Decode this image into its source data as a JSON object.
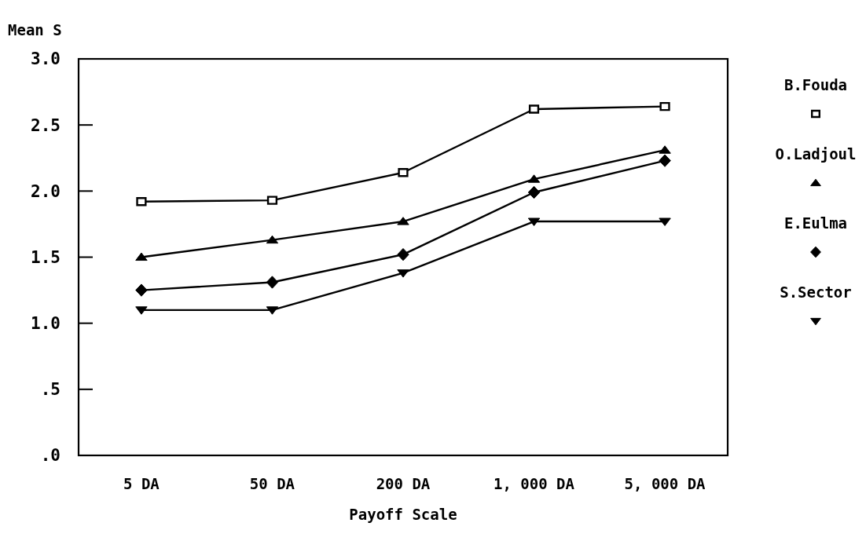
{
  "chart_data": {
    "type": "line",
    "ylabel": "Mean S",
    "xlabel": "Payoff Scale",
    "categories": [
      "5 DA",
      "50 DA",
      "200 DA",
      "1, 000 DA",
      "5, 000 DA"
    ],
    "ylim": [
      0,
      3
    ],
    "yticks": [
      {
        "value": 0,
        "label": ".0"
      },
      {
        "value": 0.5,
        "label": ".5"
      },
      {
        "value": 1,
        "label": "1.0"
      },
      {
        "value": 1.5,
        "label": "1.5"
      },
      {
        "value": 2,
        "label": "2.0"
      },
      {
        "value": 2.5,
        "label": "2.5"
      },
      {
        "value": 3,
        "label": "3.0"
      }
    ],
    "legend": "right",
    "grid": false,
    "line_style": "solid",
    "series": [
      {
        "name": "B.Fouda",
        "color": "#000000",
        "marker": "square",
        "values": [
          1.92,
          1.93,
          2.14,
          2.62,
          2.64
        ]
      },
      {
        "name": "O.Ladjoul",
        "color": "#000000",
        "marker": "triangle",
        "values": [
          1.5,
          1.63,
          1.77,
          2.09,
          2.31
        ]
      },
      {
        "name": "E.Eulma",
        "color": "#000000",
        "marker": "diamond",
        "values": [
          1.25,
          1.31,
          1.52,
          1.99,
          2.23
        ]
      },
      {
        "name": "S.Sector",
        "color": "#000000",
        "marker": "triangle-down",
        "values": [
          1.1,
          1.1,
          1.38,
          1.77,
          1.77
        ]
      }
    ]
  }
}
